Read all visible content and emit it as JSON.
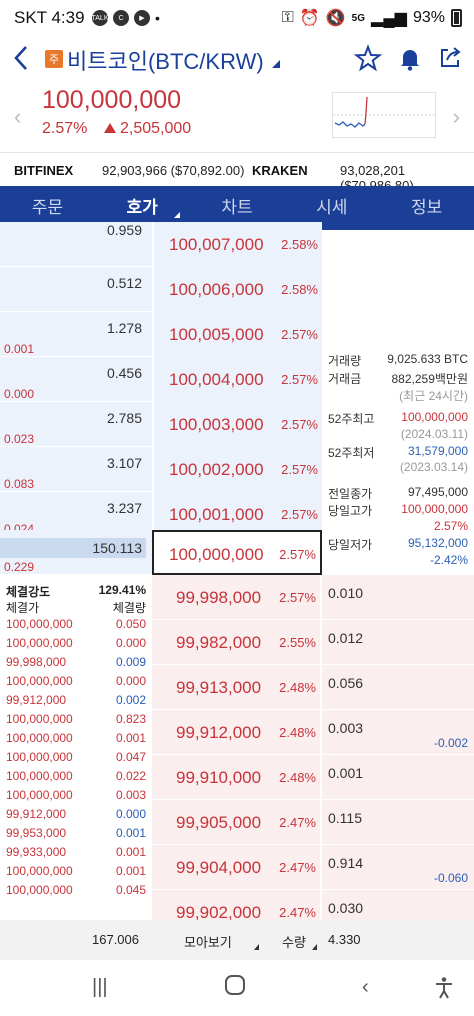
{
  "status": {
    "time": "SKT 4:39",
    "icon1": "TALK",
    "icon2": "C",
    "icon3": "▶",
    "dot": "•",
    "signal": "5G",
    "battery": "93%"
  },
  "header": {
    "badge": "주",
    "title": "비트코인(BTC/KRW)"
  },
  "summary": {
    "price": "100,000,000",
    "pct": "2.57%",
    "change": "2,505,000"
  },
  "exchanges": [
    {
      "name": "BITFINEX",
      "value": "92,903,966 ($70,892.00)"
    },
    {
      "name": "KRAKEN",
      "value": "93,028,201 ($70,986.80)"
    }
  ],
  "tabs": [
    "주문",
    "호가",
    "차트",
    "시세",
    "정보"
  ],
  "asks": [
    {
      "qty": "0.959",
      "price": "100,007,000",
      "pct": "2.58%",
      "note": ""
    },
    {
      "qty": "0.512",
      "price": "100,006,000",
      "pct": "2.58%",
      "note": ""
    },
    {
      "qty": "1.278",
      "price": "100,005,000",
      "pct": "2.57%",
      "note": "0.001"
    },
    {
      "qty": "0.456",
      "price": "100,004,000",
      "pct": "2.57%",
      "note": "0.000"
    },
    {
      "qty": "2.785",
      "price": "100,003,000",
      "pct": "2.57%",
      "note": "0.023"
    },
    {
      "qty": "3.107",
      "price": "100,002,000",
      "pct": "2.57%",
      "note": "0.083"
    },
    {
      "qty": "3.237",
      "price": "100,001,000",
      "pct": "2.57%",
      "note": "0.024"
    },
    {
      "qty": "150.113",
      "price": "100,000,000",
      "pct": "2.57%",
      "note": "0.229"
    }
  ],
  "info": {
    "volume_k": "거래량",
    "volume_v": "9,025.633 BTC",
    "amount_k": "거래금",
    "amount_v": "882,259백만원",
    "recent": "(최근 24시간)",
    "high52_k": "52주최고",
    "high52_v": "100,000,000",
    "high52_d": "(2024.03.11)",
    "low52_k": "52주최저",
    "low52_v": "31,579,000",
    "low52_d": "(2023.03.14)",
    "prevclose_k": "전일종가",
    "prevclose_v": "97,495,000",
    "dayhigh_k": "당일고가",
    "dayhigh_v": "100,000,000",
    "dayhigh_p": "2.57%",
    "daylow_k": "당일저가",
    "daylow_v": "95,132,000",
    "daylow_p": "-2.42%"
  },
  "trade": {
    "strength_k": "체결강도",
    "strength_v": "129.41%",
    "price_h": "체결가",
    "qty_h": "체결량",
    "rows": [
      {
        "price": "100,000,000",
        "qty": "0.050",
        "c": "red",
        "q": "red"
      },
      {
        "price": "100,000,000",
        "qty": "0.000",
        "c": "red",
        "q": "red"
      },
      {
        "price": "99,998,000",
        "qty": "0.009",
        "c": "red",
        "q": "blue"
      },
      {
        "price": "100,000,000",
        "qty": "0.000",
        "c": "red",
        "q": "red"
      },
      {
        "price": "99,912,000",
        "qty": "0.002",
        "c": "red",
        "q": "blue"
      },
      {
        "price": "100,000,000",
        "qty": "0.823",
        "c": "red",
        "q": "red"
      },
      {
        "price": "100,000,000",
        "qty": "0.001",
        "c": "red",
        "q": "red"
      },
      {
        "price": "100,000,000",
        "qty": "0.047",
        "c": "red",
        "q": "red"
      },
      {
        "price": "100,000,000",
        "qty": "0.022",
        "c": "red",
        "q": "red"
      },
      {
        "price": "100,000,000",
        "qty": "0.003",
        "c": "red",
        "q": "red"
      },
      {
        "price": "99,912,000",
        "qty": "0.000",
        "c": "red",
        "q": "blue"
      },
      {
        "price": "99,953,000",
        "qty": "0.001",
        "c": "red",
        "q": "blue"
      },
      {
        "price": "99,933,000",
        "qty": "0.001",
        "c": "red",
        "q": "red"
      },
      {
        "price": "100,000,000",
        "qty": "0.001",
        "c": "red",
        "q": "red"
      },
      {
        "price": "100,000,000",
        "qty": "0.045",
        "c": "red",
        "q": "red"
      }
    ]
  },
  "bids": [
    {
      "price": "99,998,000",
      "pct": "2.57%",
      "qty": "0.010",
      "diff": ""
    },
    {
      "price": "99,982,000",
      "pct": "2.55%",
      "qty": "0.012",
      "diff": ""
    },
    {
      "price": "99,913,000",
      "pct": "2.48%",
      "qty": "0.056",
      "diff": ""
    },
    {
      "price": "99,912,000",
      "pct": "2.48%",
      "qty": "0.003",
      "diff": "-0.002"
    },
    {
      "price": "99,910,000",
      "pct": "2.48%",
      "qty": "0.001",
      "diff": ""
    },
    {
      "price": "99,905,000",
      "pct": "2.47%",
      "qty": "0.115",
      "diff": ""
    },
    {
      "price": "99,904,000",
      "pct": "2.47%",
      "qty": "0.914",
      "diff": "-0.060"
    },
    {
      "price": "99,902,000",
      "pct": "2.47%",
      "qty": "0.030",
      "diff": ""
    }
  ],
  "footer": {
    "ask_total": "167.006",
    "group": "모아보기",
    "unit": "수량",
    "bid_total": "4.330"
  },
  "colors": {
    "tabbar": "#1b3f96",
    "up": "#c7343a",
    "down": "#2a5fb8",
    "askbg": "#ebf2fb",
    "bidbg": "#fbeeee"
  }
}
